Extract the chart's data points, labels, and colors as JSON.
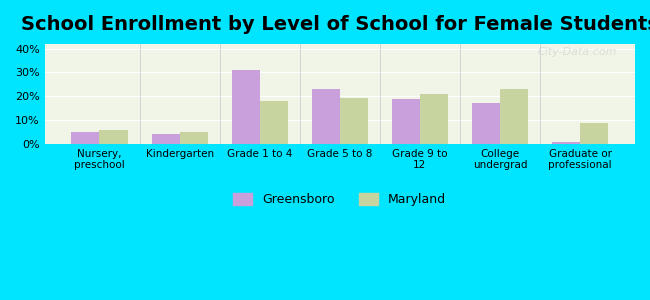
{
  "title": "School Enrollment by Level of School for Female Students",
  "categories": [
    "Nursery,\npreschool",
    "Kindergarten",
    "Grade 1 to 4",
    "Grade 5 to 8",
    "Grade 9 to\n12",
    "College\nundergrad",
    "Graduate or\nprofessional"
  ],
  "greensboro": [
    5,
    4,
    31,
    23,
    19,
    17,
    1
  ],
  "maryland": [
    6,
    5,
    18,
    19.5,
    21,
    23,
    9
  ],
  "greensboro_color": "#c9a0dc",
  "maryland_color": "#c8d4a0",
  "background_plot": "#f0f5e8",
  "background_outer": "#00e5ff",
  "ylabel_ticks": [
    "0%",
    "10%",
    "20%",
    "30%",
    "40%"
  ],
  "ytick_vals": [
    0,
    10,
    20,
    30,
    40
  ],
  "ylim": [
    0,
    42
  ],
  "legend_greensboro": "Greensboro",
  "legend_maryland": "Maryland",
  "title_fontsize": 14,
  "bar_width": 0.35,
  "watermark": "City-Data.com"
}
